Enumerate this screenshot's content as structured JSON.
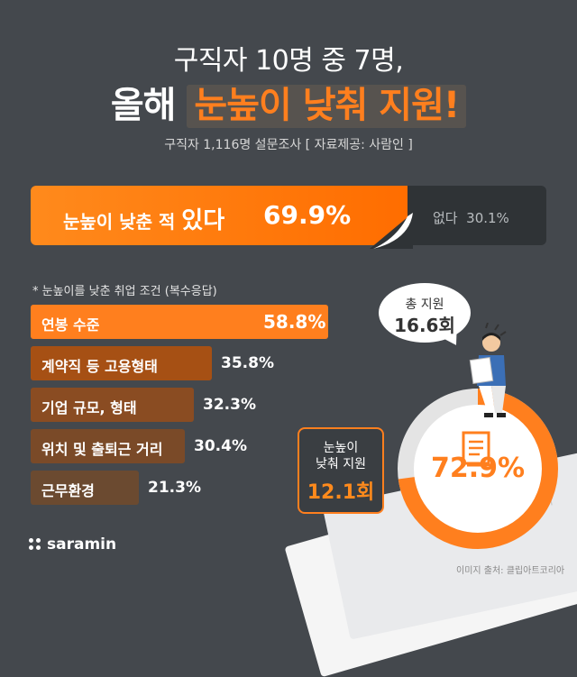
{
  "header": {
    "title_line1": "구직자 10명 중 7명,",
    "title_line2_prefix": "올해",
    "title_line2_highlight": "눈높이 낮춰 지원!",
    "subtitle": "구직자 1,116명 설문조사 [ 자료제공: 사람인 ]"
  },
  "main_stat": {
    "yes_label_prefix": "눈높이 낮춘 적",
    "yes_label_emph": "있다",
    "yes_value": "69.9%",
    "yes_fraction": 0.699,
    "no_label": "없다",
    "no_value": "30.1%"
  },
  "conditions": {
    "title": "* 눈높이를 낮춘 취업 조건 (복수응답)",
    "items": [
      {
        "label": "연봉 수준",
        "value": "58.8%",
        "pct": 58.8,
        "color": "#ff7f1e"
      },
      {
        "label": "계약직 등 고용형태",
        "value": "35.8%",
        "pct": 35.8,
        "color": "#a65014"
      },
      {
        "label": "기업 규모, 형태",
        "value": "32.3%",
        "pct": 32.3,
        "color": "#8a4c22"
      },
      {
        "label": "위치 및 출퇴근 거리",
        "value": "30.4%",
        "pct": 30.4,
        "color": "#7a4a28"
      },
      {
        "label": "근무환경",
        "value": "21.3%",
        "pct": 21.3,
        "color": "#6b4a30"
      }
    ]
  },
  "applications": {
    "bubble_line1": "총 지원",
    "bubble_line2": "16.6회",
    "box_line1": "눈높이",
    "box_line2": "낮춰 지원",
    "box_value": "12.1회",
    "ring_value": "72.9%",
    "ring_fraction": 0.729,
    "paper_text": "이력서"
  },
  "footer": {
    "logo": "saramin",
    "credit": "이미지 출처: 클립아트코리아"
  },
  "colors": {
    "accent": "#ff7f1e",
    "background": "#44484d"
  }
}
